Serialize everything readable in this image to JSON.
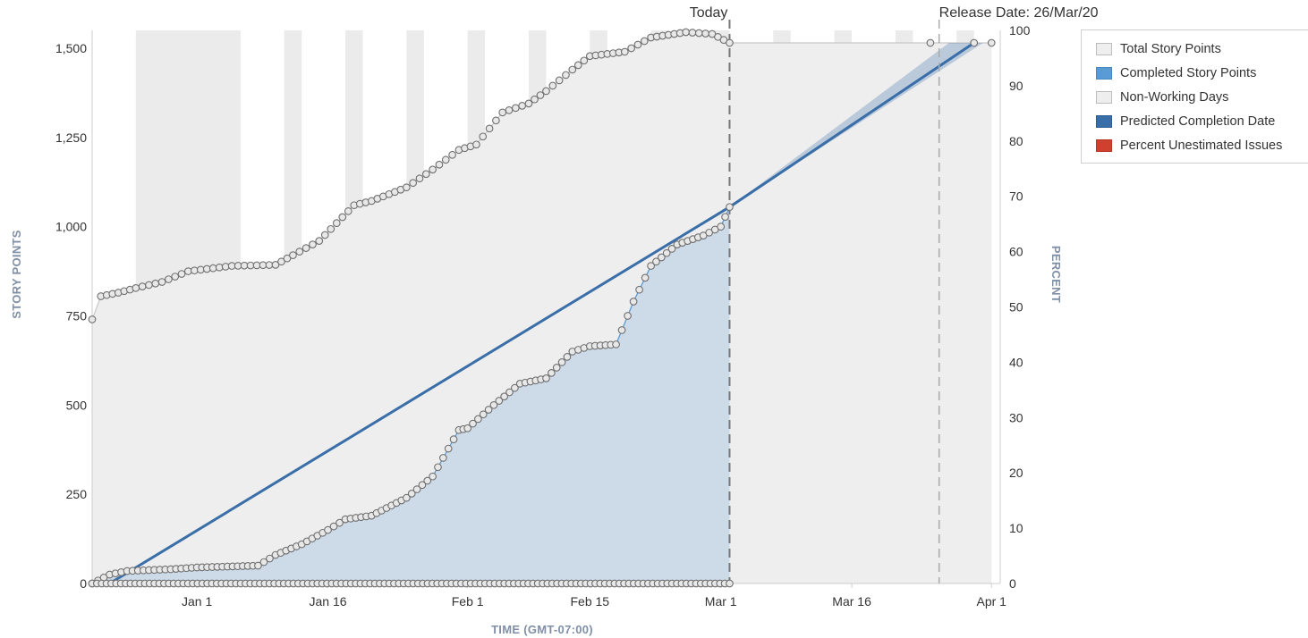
{
  "chart_data": {
    "type": "line",
    "title": "",
    "xlabel": "TIME (GMT-07:00)",
    "ylabel": "STORY POINTS",
    "y2label": "PERCENT",
    "ylim": [
      0,
      1550
    ],
    "y2lim": [
      0,
      100
    ],
    "x_range": [
      "2019-12-20",
      "2020-04-02"
    ],
    "x_ticks": [
      {
        "date": "2020-01-01",
        "label": "Jan 1"
      },
      {
        "date": "2020-01-16",
        "label": "Jan 16"
      },
      {
        "date": "2020-02-01",
        "label": "Feb 1"
      },
      {
        "date": "2020-02-15",
        "label": "Feb 15"
      },
      {
        "date": "2020-03-01",
        "label": "Mar 1"
      },
      {
        "date": "2020-03-16",
        "label": "Mar 16"
      },
      {
        "date": "2020-04-01",
        "label": "Apr 1"
      }
    ],
    "y_ticks": [
      {
        "value": 0,
        "label": "0"
      },
      {
        "value": 250,
        "label": "250"
      },
      {
        "value": 500,
        "label": "500"
      },
      {
        "value": 750,
        "label": "750"
      },
      {
        "value": 1000,
        "label": "1,000"
      },
      {
        "value": 1250,
        "label": "1,250"
      },
      {
        "value": 1500,
        "label": "1,500"
      }
    ],
    "y2_ticks": [
      0,
      10,
      20,
      30,
      40,
      50,
      60,
      70,
      80,
      90,
      100
    ],
    "markers": [
      {
        "label": "Today",
        "date": "2020-03-02"
      },
      {
        "label": "Release Date: 26/Mar/20",
        "date": "2020-03-26"
      }
    ],
    "legend_position": "top-right",
    "colors": {
      "total": "#eeeeee",
      "completed": "#5b9bd5",
      "completed_fill": "#c9d8e8",
      "non_working": "#e4e4e4",
      "predicted": "#3a6ea8",
      "unestimated": "#d0402f",
      "marker_line": "#888888"
    },
    "non_working_days": [
      [
        "2019-12-25",
        "2020-01-06"
      ],
      [
        "2020-01-11",
        "2020-01-13"
      ],
      [
        "2020-01-18",
        "2020-01-20"
      ],
      [
        "2020-01-25",
        "2020-01-27"
      ],
      [
        "2020-02-01",
        "2020-02-03"
      ],
      [
        "2020-02-08",
        "2020-02-10"
      ],
      [
        "2020-02-15",
        "2020-02-17"
      ],
      [
        "2020-02-22",
        "2020-02-24"
      ],
      [
        "2020-02-29",
        "2020-03-02"
      ],
      [
        "2020-03-07",
        "2020-03-09"
      ],
      [
        "2020-03-14",
        "2020-03-16"
      ],
      [
        "2020-03-21",
        "2020-03-23"
      ],
      [
        "2020-03-28",
        "2020-03-30"
      ]
    ],
    "series": [
      {
        "name": "Total Story Points",
        "points": [
          [
            "2019-12-20",
            740
          ],
          [
            "2019-12-21",
            805
          ],
          [
            "2019-12-23",
            815
          ],
          [
            "2019-12-25",
            828
          ],
          [
            "2019-12-28",
            845
          ],
          [
            "2019-12-31",
            875
          ],
          [
            "2020-01-05",
            890
          ],
          [
            "2020-01-10",
            893
          ],
          [
            "2020-01-12",
            920
          ],
          [
            "2020-01-15",
            960
          ],
          [
            "2020-01-17",
            1010
          ],
          [
            "2020-01-19",
            1060
          ],
          [
            "2020-01-21",
            1072
          ],
          [
            "2020-01-25",
            1110
          ],
          [
            "2020-01-28",
            1160
          ],
          [
            "2020-01-31",
            1215
          ],
          [
            "2020-02-02",
            1230
          ],
          [
            "2020-02-05",
            1320
          ],
          [
            "2020-02-08",
            1345
          ],
          [
            "2020-02-10",
            1380
          ],
          [
            "2020-02-13",
            1440
          ],
          [
            "2020-02-15",
            1478
          ],
          [
            "2020-02-19",
            1490
          ],
          [
            "2020-02-22",
            1530
          ],
          [
            "2020-02-26",
            1545
          ],
          [
            "2020-02-29",
            1540
          ],
          [
            "2020-03-02",
            1515
          ],
          [
            "2020-03-25",
            1515
          ],
          [
            "2020-03-30",
            1515
          ],
          [
            "2020-04-01",
            1515
          ]
        ]
      },
      {
        "name": "Completed Story Points",
        "points": [
          [
            "2019-12-20",
            0
          ],
          [
            "2019-12-22",
            25
          ],
          [
            "2019-12-24",
            35
          ],
          [
            "2019-12-29",
            40
          ],
          [
            "2020-01-01",
            45
          ],
          [
            "2020-01-08",
            50
          ],
          [
            "2020-01-10",
            80
          ],
          [
            "2020-01-13",
            110
          ],
          [
            "2020-01-16",
            150
          ],
          [
            "2020-01-18",
            180
          ],
          [
            "2020-01-21",
            190
          ],
          [
            "2020-01-25",
            240
          ],
          [
            "2020-01-28",
            300
          ],
          [
            "2020-01-31",
            430
          ],
          [
            "2020-02-01",
            435
          ],
          [
            "2020-02-04",
            500
          ],
          [
            "2020-02-07",
            560
          ],
          [
            "2020-02-10",
            575
          ],
          [
            "2020-02-13",
            650
          ],
          [
            "2020-02-15",
            665
          ],
          [
            "2020-02-18",
            670
          ],
          [
            "2020-02-20",
            790
          ],
          [
            "2020-02-22",
            890
          ],
          [
            "2020-02-25",
            950
          ],
          [
            "2020-02-28",
            975
          ],
          [
            "2020-03-01",
            1000
          ],
          [
            "2020-03-02",
            1055
          ]
        ]
      },
      {
        "name": "Predicted Completion Date",
        "points": [
          [
            "2019-12-22",
            0
          ],
          [
            "2020-03-02",
            1055
          ],
          [
            "2020-03-30",
            1515
          ]
        ]
      },
      {
        "name": "Percent Unestimated Issues",
        "axis": "right",
        "points": [
          [
            "2019-12-20",
            0
          ],
          [
            "2020-03-02",
            0
          ]
        ]
      }
    ]
  },
  "legend": {
    "items": [
      {
        "label": "Total Story Points",
        "color": "#eeeeee"
      },
      {
        "label": "Completed Story Points",
        "color": "#5b9bd5"
      },
      {
        "label": "Non-Working Days",
        "color": "#eeeeee"
      },
      {
        "label": "Predicted Completion Date",
        "color": "#3a6ea8"
      },
      {
        "label": "Percent Unestimated Issues",
        "color": "#d0402f"
      }
    ]
  }
}
